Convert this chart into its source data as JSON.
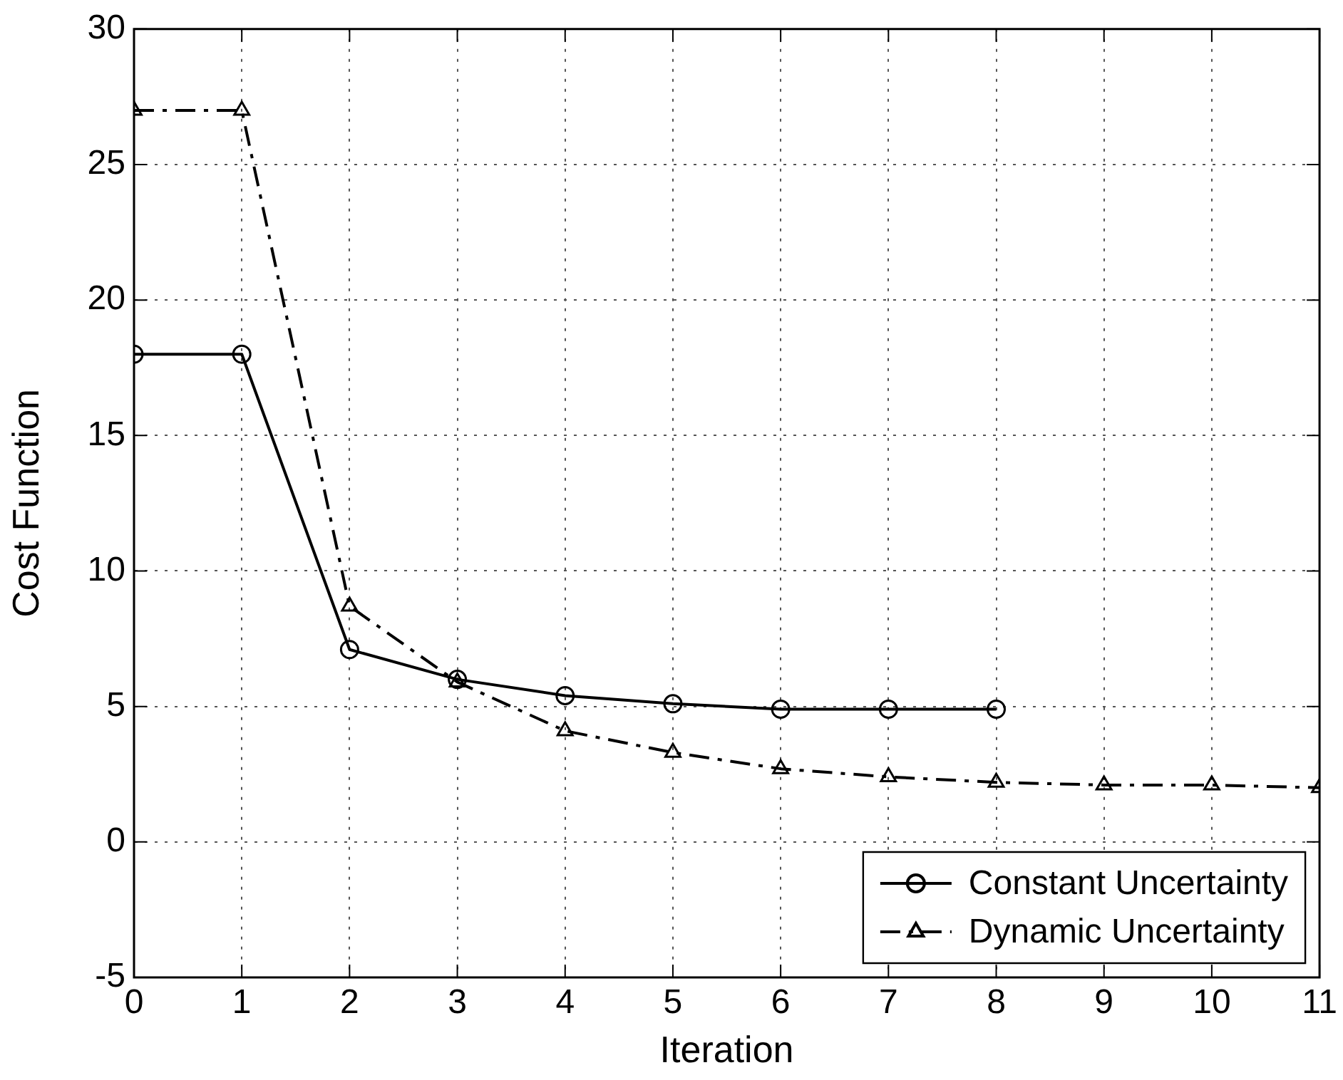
{
  "chart_data": {
    "type": "line",
    "xlabel": "Iteration",
    "ylabel": "Cost Function",
    "xlim": [
      0,
      11
    ],
    "xticks": [
      0,
      1,
      2,
      3,
      4,
      5,
      6,
      7,
      8,
      9,
      10,
      11
    ],
    "ylim": [
      -5,
      30
    ],
    "yticks": [
      -5,
      0,
      5,
      10,
      15,
      20,
      25,
      30
    ],
    "grid": true,
    "legend": "bottom right",
    "series": [
      {
        "name": "Constant Uncertainty",
        "color": "#000000",
        "marker": "circle",
        "line_style": "solid",
        "x": [
          0,
          1,
          2,
          3,
          4,
          5,
          6,
          7,
          8
        ],
        "values": [
          18,
          18,
          7.1,
          6.0,
          5.4,
          5.1,
          4.9,
          4.9,
          4.9
        ]
      },
      {
        "name": "Dynamic Uncertainty",
        "color": "#000000",
        "marker": "triangle",
        "line_style": "dashed",
        "x": [
          0,
          1,
          2,
          3,
          4,
          5,
          6,
          7,
          8,
          9,
          10,
          11
        ],
        "values": [
          27,
          27,
          8.7,
          5.9,
          4.1,
          3.3,
          2.7,
          2.4,
          2.2,
          2.1,
          2.1,
          2.0
        ]
      }
    ]
  }
}
